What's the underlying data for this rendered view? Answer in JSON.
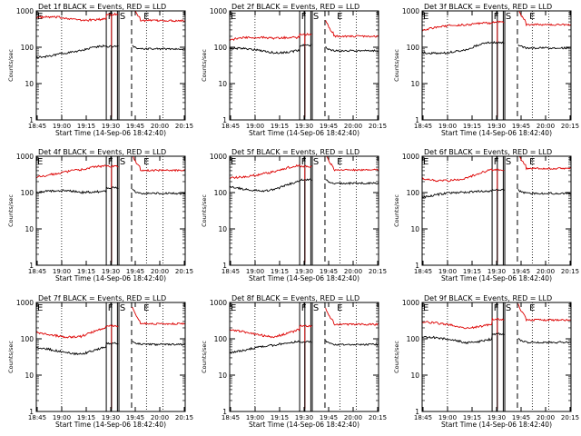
{
  "figure": {
    "common": {
      "ylabel": "Counts/sec",
      "xlabel": "Start Time (14-Sep-06 18:42:40)",
      "x_tick_labels": [
        "18:45",
        "19:00",
        "19:15",
        "19:30",
        "19:45",
        "20:00",
        "20:15"
      ],
      "y_tick_labels": [
        "1",
        "10",
        "100",
        "1000"
      ],
      "region_letters": [
        "F",
        "S",
        "E"
      ],
      "colors": {
        "events": "#000000",
        "lld": "#dd0000",
        "axes": "#000000"
      }
    }
  },
  "chart_data": [
    {
      "type": "line",
      "title": "Det 1f BLACK = Events, RED = LLD",
      "yscale": "log",
      "ylim": [
        1,
        1000
      ],
      "series": [
        {
          "name": "Events",
          "baseline": 70,
          "after": 90
        },
        {
          "name": "LLD",
          "baseline": 540,
          "after": 540
        }
      ]
    },
    {
      "type": "line",
      "title": "Det 2f BLACK = Events, RED = LLD",
      "yscale": "log",
      "ylim": [
        1,
        1000
      ],
      "series": [
        {
          "name": "Events",
          "baseline": 75,
          "after": 80
        },
        {
          "name": "LLD",
          "baseline": 150,
          "after": 200
        }
      ]
    },
    {
      "type": "line",
      "title": "Det 3f BLACK = Events, RED = LLD",
      "yscale": "log",
      "ylim": [
        1,
        1000
      ],
      "series": [
        {
          "name": "Events",
          "baseline": 90,
          "after": 95
        },
        {
          "name": "LLD",
          "baseline": 330,
          "after": 420
        }
      ]
    },
    {
      "type": "line",
      "title": "Det 4f BLACK = Events, RED = LLD",
      "yscale": "log",
      "ylim": [
        1,
        1000
      ],
      "series": [
        {
          "name": "Events",
          "baseline": 90,
          "after": 95
        },
        {
          "name": "LLD",
          "baseline": 350,
          "after": 410
        }
      ]
    },
    {
      "type": "line",
      "title": "Det 5f BLACK = Events, RED = LLD",
      "yscale": "log",
      "ylim": [
        1,
        1000
      ],
      "series": [
        {
          "name": "Events",
          "baseline": 150,
          "after": 180
        },
        {
          "name": "LLD",
          "baseline": 350,
          "after": 420
        }
      ]
    },
    {
      "type": "line",
      "title": "Det 6f BLACK = Events, RED = LLD",
      "yscale": "log",
      "ylim": [
        1,
        1000
      ],
      "series": [
        {
          "name": "Events",
          "baseline": 80,
          "after": 95
        },
        {
          "name": "LLD",
          "baseline": 280,
          "after": 460
        }
      ]
    },
    {
      "type": "line",
      "title": "Det 7f BLACK = Events, RED = LLD",
      "yscale": "log",
      "ylim": [
        1,
        1000
      ],
      "series": [
        {
          "name": "Events",
          "baseline": 50,
          "after": 70
        },
        {
          "name": "LLD",
          "baseline": 150,
          "after": 260
        }
      ]
    },
    {
      "type": "line",
      "title": "Det 8f BLACK = Events, RED = LLD",
      "yscale": "log",
      "ylim": [
        1,
        1000
      ],
      "series": [
        {
          "name": "Events",
          "baseline": 55,
          "after": 70
        },
        {
          "name": "LLD",
          "baseline": 150,
          "after": 250
        }
      ]
    },
    {
      "type": "line",
      "title": "Det 9f BLACK = Events, RED = LLD",
      "yscale": "log",
      "ylim": [
        1,
        1000
      ],
      "series": [
        {
          "name": "Events",
          "baseline": 90,
          "after": 80
        },
        {
          "name": "LLD",
          "baseline": 230,
          "after": 330
        }
      ]
    }
  ]
}
